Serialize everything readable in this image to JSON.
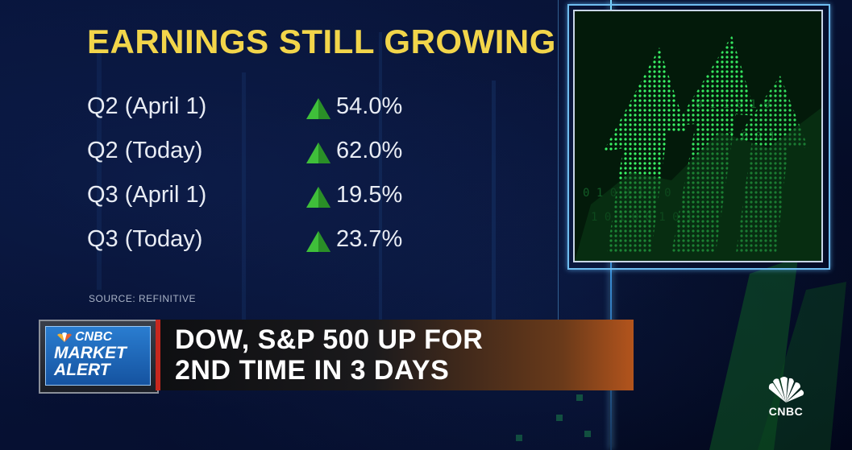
{
  "title": "EARNINGS STILL GROWING",
  "rows": [
    {
      "label": "Q2 (April 1)",
      "value": "54.0%",
      "direction": "up"
    },
    {
      "label": "Q2 (Today)",
      "value": "62.0%",
      "direction": "up"
    },
    {
      "label": "Q3 (April 1)",
      "value": "19.5%",
      "direction": "up"
    },
    {
      "label": "Q3 (Today)",
      "value": "23.7%",
      "direction": "up"
    }
  ],
  "source": "SOURCE: REFINITIVE",
  "alert": {
    "brand": "CNBC",
    "line1": "MARKET",
    "line2": "ALERT"
  },
  "headline": {
    "line1": "DOW, S&P 500 UP FOR",
    "line2": "2ND TIME IN 3 DAYS"
  },
  "logo_text": "CNBC",
  "colors": {
    "title": "#f2d54a",
    "up_arrow": "#3fbf3a",
    "alert_blue": "#1f6fc4",
    "alert_red": "#c7281e"
  }
}
